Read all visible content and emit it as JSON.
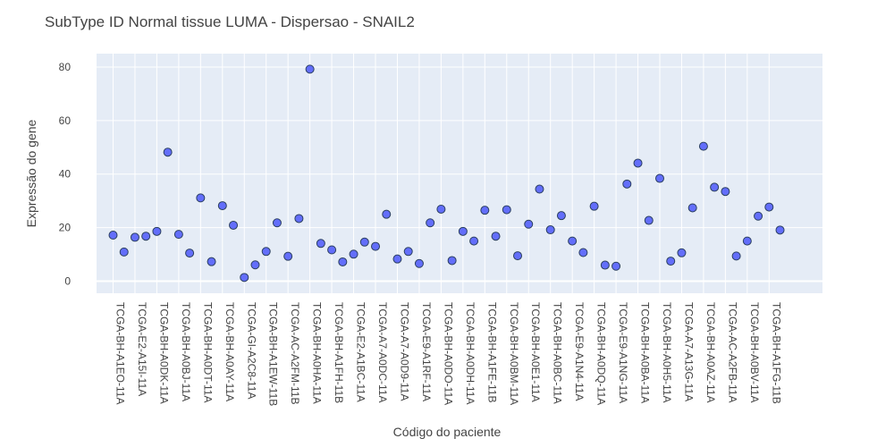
{
  "chart_data": {
    "type": "scatter",
    "title": "SubType ID Normal tissue LUMA - Dispersao - SNAIL2",
    "xlabel": "Código do paciente",
    "ylabel": "Expressão do gene",
    "ylim": [
      -4.5,
      85
    ],
    "y_ticks": [
      0,
      20,
      40,
      60,
      80
    ],
    "grid": true,
    "legend": "none",
    "marker_color": "#636efa",
    "marker_edge_color": "#2a3f5f",
    "plot_bg": "#e5ecf6",
    "x_tick_labels": [
      "TCGA-BH-A1EO-11A",
      "TCGA-E2-A15I-11A",
      "TCGA-BH-A0DK-11A",
      "TCGA-BH-A0BJ-11A",
      "TCGA-BH-A0DT-11A",
      "TCGA-BH-A0AY-11A",
      "TCGA-GI-A2C8-11A",
      "TCGA-BH-A1EW-11B",
      "TCGA-AC-A2FM-11B",
      "TCGA-BH-A0HA-11A",
      "TCGA-BH-A1FH-11B",
      "TCGA-E2-A1BC-11A",
      "TCGA-A7-A0DC-11A",
      "TCGA-A7-A0D9-11A",
      "TCGA-E9-A1RF-11A",
      "TCGA-BH-A0DO-11A",
      "TCGA-BH-A0DH-11A",
      "TCGA-BH-A1FE-11B",
      "TCGA-BH-A0BM-11A",
      "TCGA-BH-A0E1-11A",
      "TCGA-BH-A0BC-11A",
      "TCGA-E9-A1N4-11A",
      "TCGA-BH-A0DQ-11A",
      "TCGA-E9-A1NG-11A",
      "TCGA-BH-A0BA-11A",
      "TCGA-BH-A0H5-11A",
      "TCGA-A7-A13G-11A",
      "TCGA-BH-A0AZ-11A",
      "TCGA-AC-A2FB-11A",
      "TCGA-BH-A0BV-11A",
      "TCGA-BH-A1FG-11B"
    ],
    "values": [
      17.2,
      10.9,
      16.4,
      16.8,
      18.6,
      48.2,
      17.5,
      10.5,
      31.1,
      7.3,
      28.2,
      20.9,
      1.4,
      6.1,
      11.1,
      21.8,
      9.3,
      23.4,
      79.2,
      14.1,
      11.7,
      7.2,
      10.1,
      14.6,
      13.0,
      25.0,
      8.3,
      11.1,
      6.6,
      21.8,
      26.9,
      7.7,
      18.6,
      15.0,
      26.5,
      16.8,
      26.7,
      9.5,
      21.3,
      34.4,
      19.2,
      24.5,
      15.0,
      10.7,
      28.0,
      6.0,
      5.6,
      36.3,
      44.1,
      22.7,
      38.4,
      7.5,
      10.6,
      27.4,
      50.4,
      35.1,
      33.5,
      9.4,
      15.0,
      24.3,
      27.7,
      19.1
    ]
  }
}
